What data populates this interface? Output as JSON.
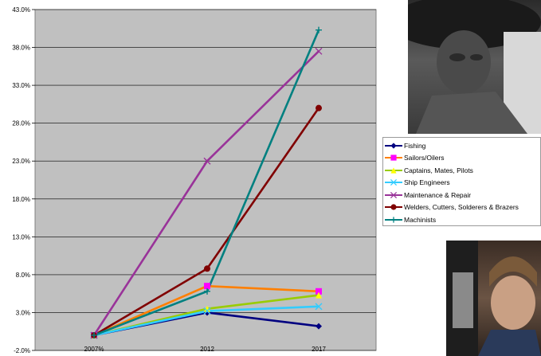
{
  "chart_data": {
    "type": "line",
    "categories": [
      "2007%",
      "2012",
      "2017"
    ],
    "ylim": [
      -2,
      43
    ],
    "y_ticks": [
      "43.0%",
      "38.0%",
      "33.0%",
      "28.0%",
      "23.0%",
      "18.0%",
      "13.0%",
      "8.0%",
      "3.0%",
      "-2.0%"
    ],
    "y_tick_values": [
      43,
      38,
      33,
      28,
      23,
      18,
      13,
      8,
      3,
      -2
    ],
    "grid": true,
    "legend_position": "right",
    "series": [
      {
        "name": "Fishing",
        "color": "#000080",
        "marker": "diamond",
        "values": [
          0,
          3.0,
          1.2
        ]
      },
      {
        "name": "Sailors/Oilers",
        "color": "#ff7f00",
        "marker_color": "#ff00ff",
        "marker": "square",
        "values": [
          0,
          6.5,
          5.8
        ]
      },
      {
        "name": "Captains, Mates, Pilots",
        "color": "#99cc00",
        "marker_color": "#ffff00",
        "marker": "triangle",
        "values": [
          0,
          3.5,
          5.3
        ]
      },
      {
        "name": "Ship Engineers",
        "color": "#33ccff",
        "marker": "x",
        "values": [
          0,
          3.2,
          3.8
        ]
      },
      {
        "name": "Maintenance & Repair",
        "color": "#993399",
        "marker": "x",
        "values": [
          0,
          23.0,
          37.5
        ]
      },
      {
        "name": "Welders, Cutters, Solderers & Brazers",
        "color": "#800000",
        "marker": "circle",
        "values": [
          0,
          8.8,
          30.0
        ]
      },
      {
        "name": "Machinists",
        "color": "#008080",
        "marker": "plus",
        "values": [
          0,
          5.8,
          40.3
        ]
      }
    ]
  },
  "images": {
    "photo_top": "black-and-white photo of a worker in a hat",
    "photo_bottom": "photo of a worker at a drill press"
  }
}
